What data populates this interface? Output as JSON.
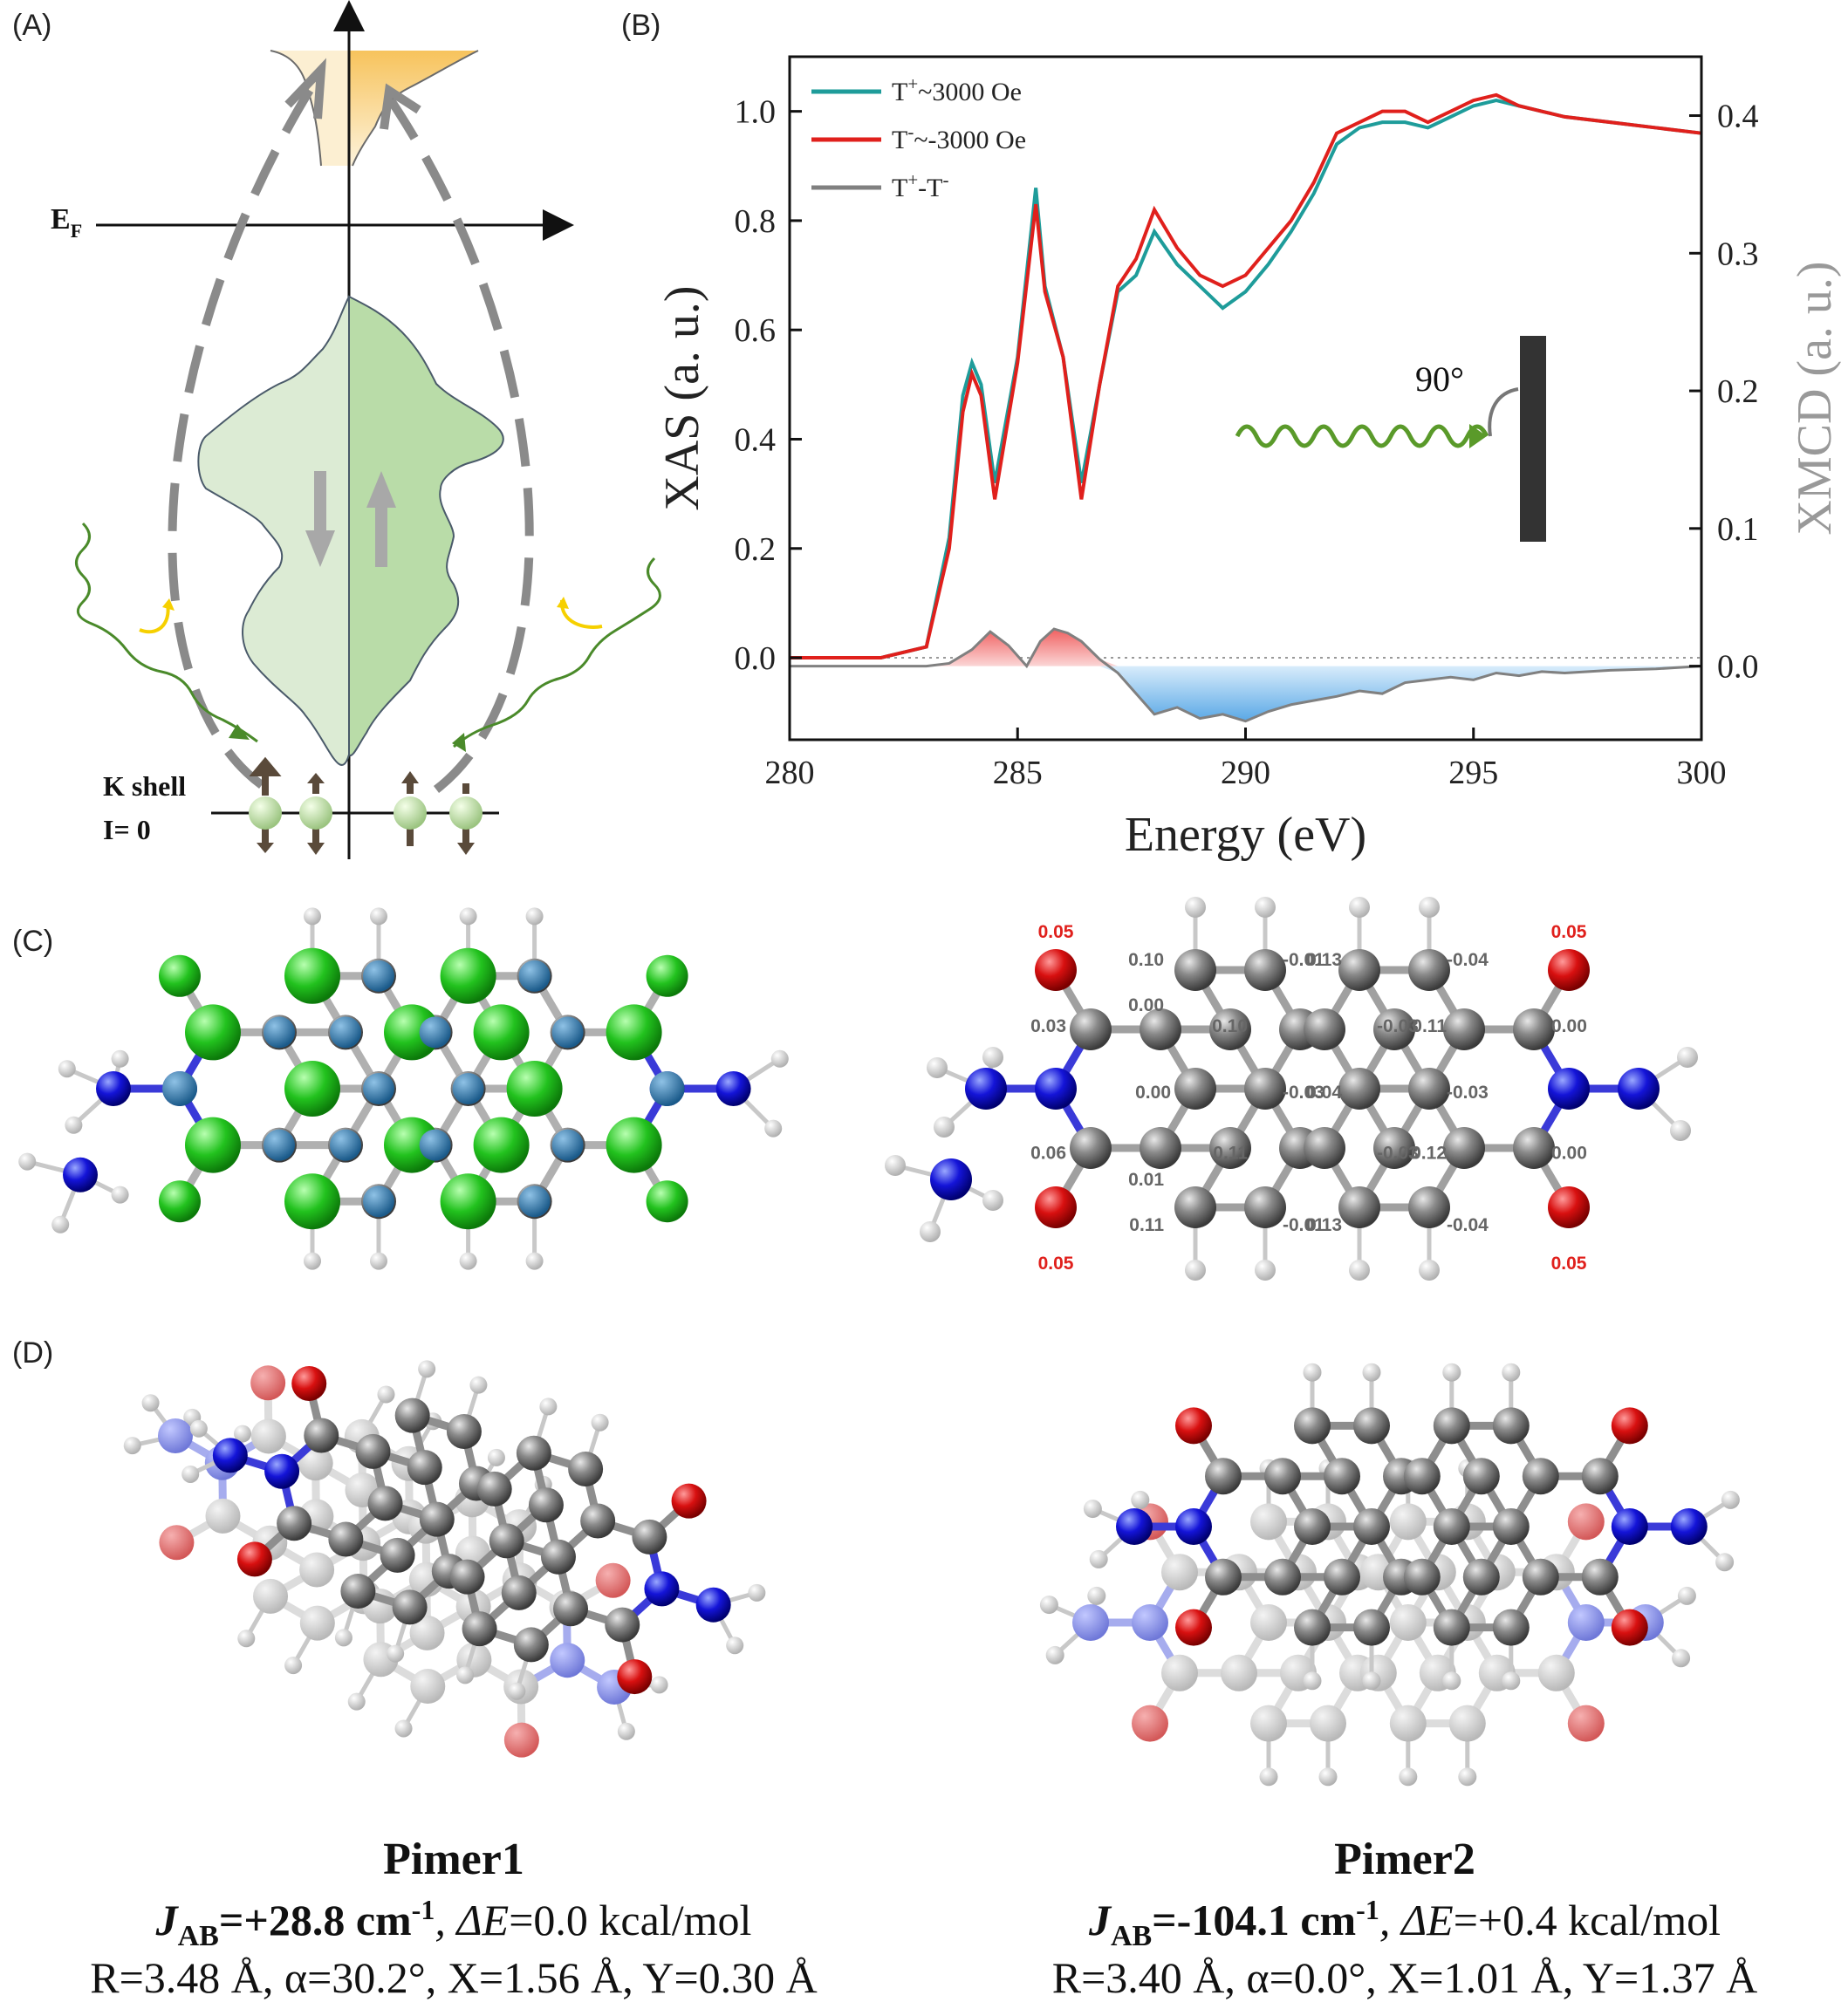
{
  "panels": {
    "A": {
      "label": "(A)",
      "fermi_label": "E",
      "fermi_sub": "F",
      "k_shell": "K shell",
      "spin_label": "I= 0"
    },
    "B": {
      "label": "(B)",
      "angle_label": "90°"
    },
    "C": {
      "label": "(C)",
      "charges": [
        "0.05",
        "0.10",
        "-0.01",
        "0.13",
        "-0.04",
        "0.05",
        "0.00",
        "0.03",
        "0.10",
        "-0.03",
        "0.11",
        "0.00",
        "0.00",
        "-0.03",
        "0.04",
        "-0.03",
        "0.06",
        "0.11",
        "-0.03",
        "0.12",
        "0.00",
        "0.01",
        "0.11",
        "-0.01",
        "0.13",
        "-0.04",
        "0.05",
        "0.05"
      ]
    },
    "D": {
      "label": "(D)",
      "pimer1": {
        "title": "Pimer1",
        "j": "J",
        "j_sub": "AB",
        "j_value": "=+28.8 cm",
        "j_exp": "-1",
        "de_sym": ", ΔE",
        "de_value": "=0.0 kcal/mol",
        "geom": "R=3.48 Å, α=30.2°, X=1.56 Å, Y=0.30 Å"
      },
      "pimer2": {
        "title": "Pimer2",
        "j": "J",
        "j_sub": "AB",
        "j_value": "=-104.1 cm",
        "j_exp": "-1",
        "de_sym": ", ΔE",
        "de_value": "=+0.4 kcal/mol",
        "geom": "R=3.40 Å, α=0.0°, X=1.01 Å, Y=1.37 Å"
      }
    }
  },
  "chart_data": {
    "type": "line",
    "xlabel": "Energy (eV)",
    "ylabel": "XAS (a. u.)",
    "y2label": "XMCD (a. u.)",
    "xlim": [
      280,
      300
    ],
    "ylim": [
      -0.15,
      1.1
    ],
    "y2lim": [
      -0.0535,
      0.4428
    ],
    "xticks": [
      280,
      285,
      290,
      295,
      300
    ],
    "yticks": [
      0.0,
      0.2,
      0.4,
      0.6,
      0.8,
      1.0
    ],
    "y2ticks": [
      0.0,
      0.1,
      0.2,
      0.3,
      0.4
    ],
    "x": [
      280,
      281,
      282,
      283,
      283.5,
      283.8,
      284,
      284.2,
      284.5,
      285,
      285.4,
      285.6,
      286,
      286.4,
      286.8,
      287.2,
      287.6,
      288,
      288.5,
      289,
      289.5,
      290,
      290.5,
      291,
      291.5,
      292,
      292.5,
      293,
      293.5,
      294,
      294.5,
      295,
      295.5,
      296,
      296.5,
      297,
      298,
      299,
      300
    ],
    "series": [
      {
        "name": "T",
        "name_sup": "+",
        "name_rest": "~3000 Oe",
        "color": "#1e9c9a",
        "values": [
          0.0,
          0.0,
          0.0,
          0.02,
          0.22,
          0.48,
          0.54,
          0.5,
          0.32,
          0.55,
          0.86,
          0.68,
          0.55,
          0.32,
          0.5,
          0.67,
          0.7,
          0.78,
          0.72,
          0.68,
          0.64,
          0.67,
          0.72,
          0.78,
          0.85,
          0.94,
          0.97,
          0.98,
          0.98,
          0.97,
          0.99,
          1.01,
          1.02,
          1.01,
          1.0,
          0.99,
          0.98,
          0.97,
          0.96
        ]
      },
      {
        "name": "T",
        "name_sup": "-",
        "name_rest": "~-3000 Oe",
        "color": "#e0201c",
        "values": [
          0.0,
          0.0,
          0.0,
          0.02,
          0.2,
          0.45,
          0.52,
          0.48,
          0.29,
          0.54,
          0.83,
          0.67,
          0.55,
          0.29,
          0.5,
          0.68,
          0.73,
          0.82,
          0.75,
          0.7,
          0.68,
          0.7,
          0.75,
          0.8,
          0.87,
          0.96,
          0.98,
          1.0,
          1.0,
          0.98,
          1.0,
          1.02,
          1.03,
          1.01,
          1.0,
          0.99,
          0.98,
          0.97,
          0.96
        ]
      }
    ],
    "xmcd": {
      "name": "T",
      "name_sup": "+",
      "name_mid": "-T",
      "name_sup2": "-",
      "color": "#808080",
      "pos_fill": "#f07a7a",
      "neg_fill": "#7ab8ec",
      "x": [
        280,
        281,
        282,
        283,
        283.5,
        284,
        284.4,
        284.8,
        285.2,
        285.5,
        285.8,
        286.1,
        286.4,
        286.8,
        287.2,
        287.6,
        288,
        288.5,
        289,
        289.5,
        290,
        290.5,
        291,
        291.5,
        292,
        292.5,
        293,
        293.5,
        294,
        294.5,
        295,
        295.5,
        296,
        296.5,
        297,
        298,
        299,
        300
      ],
      "values": [
        0.0,
        0.0,
        0.0,
        0.0,
        0.002,
        0.012,
        0.025,
        0.015,
        0.0,
        0.018,
        0.027,
        0.024,
        0.018,
        0.005,
        -0.005,
        -0.02,
        -0.035,
        -0.03,
        -0.038,
        -0.035,
        -0.04,
        -0.033,
        -0.028,
        -0.025,
        -0.022,
        -0.018,
        -0.02,
        -0.012,
        -0.01,
        -0.008,
        -0.01,
        -0.005,
        -0.007,
        -0.004,
        -0.005,
        -0.003,
        -0.002,
        0.0
      ]
    }
  }
}
